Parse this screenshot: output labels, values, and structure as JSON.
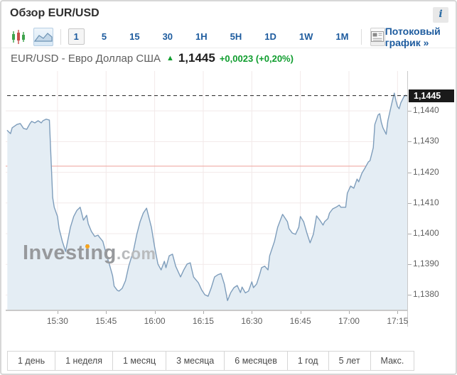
{
  "title": "Обзор EUR/USD",
  "info_button_label": "i",
  "toolbar": {
    "chart_types": [
      {
        "name": "candlestick-chart",
        "active": false
      },
      {
        "name": "area-chart",
        "active": true
      }
    ],
    "intervals": [
      "1",
      "5",
      "15",
      "30",
      "1H",
      "5H",
      "1D",
      "1W",
      "1M"
    ],
    "active_interval": "1",
    "streaming_link": "Потоковый график »"
  },
  "instrument": {
    "name": "EUR/USD - Евро Доллар США",
    "direction": "up",
    "price": "1,1445",
    "change": "+0,0023",
    "change_pct": "(+0,20%)"
  },
  "watermark": {
    "part1": "Invest",
    "part2": "i",
    "part3": "ng",
    "suffix": ".com"
  },
  "ranges": [
    "1 день",
    "1 неделя",
    "1 месяц",
    "3 месяца",
    "6 месяцев",
    "1 год",
    "5 лет",
    "Макс."
  ],
  "colors": {
    "line": "#7e9dbb",
    "fill": "#e4edf4",
    "grid": "#f2e9e9",
    "prev_close_line": "#efaaa4",
    "current_price_line": "#3a3a3a",
    "badge_bg": "#1a1a1a",
    "up_green": "#0f9d2e",
    "link_blue": "#1d5b9e"
  },
  "chart_data": {
    "type": "area",
    "title": "EUR/USD 1-minute intraday",
    "grid": true,
    "x_axis": {
      "start": "15:14",
      "end": "17:18",
      "ticks": [
        "15:30",
        "15:45",
        "16:00",
        "16:15",
        "16:30",
        "16:45",
        "17:00",
        "17:15"
      ]
    },
    "y_axis": {
      "min": 1.1375,
      "max": 1.1453,
      "ticks": [
        {
          "v": 1.144,
          "label": "1,1440"
        },
        {
          "v": 1.143,
          "label": "1,1430"
        },
        {
          "v": 1.142,
          "label": "1,1420"
        },
        {
          "v": 1.141,
          "label": "1,1410"
        },
        {
          "v": 1.14,
          "label": "1,1400"
        },
        {
          "v": 1.139,
          "label": "1,1390"
        },
        {
          "v": 1.138,
          "label": "1,1380"
        }
      ]
    },
    "last_price": 1.1445,
    "last_price_label": "1,1445",
    "prev_close": 1.1422,
    "series": [
      {
        "name": "EUR/USD",
        "points": [
          [
            0.5,
            1.14336
          ],
          [
            1.5,
            1.14326
          ],
          [
            2,
            1.14345
          ],
          [
            3.5,
            1.14356
          ],
          [
            4.5,
            1.14359
          ],
          [
            5.5,
            1.14343
          ],
          [
            6.5,
            1.1434
          ],
          [
            7.5,
            1.14359
          ],
          [
            8,
            1.14366
          ],
          [
            9,
            1.14361
          ],
          [
            10,
            1.14368
          ],
          [
            11,
            1.14361
          ],
          [
            11.5,
            1.14368
          ],
          [
            12.5,
            1.14373
          ],
          [
            13.5,
            1.1437
          ],
          [
            14.5,
            1.14118
          ],
          [
            15,
            1.14086
          ],
          [
            16,
            1.14056
          ],
          [
            16.5,
            1.14016
          ],
          [
            17.5,
            1.13975
          ],
          [
            18.5,
            1.13942
          ],
          [
            20,
            1.14021
          ],
          [
            21,
            1.14056
          ],
          [
            22,
            1.14076
          ],
          [
            23,
            1.14086
          ],
          [
            24,
            1.14044
          ],
          [
            25,
            1.1406
          ],
          [
            25.5,
            1.14032
          ],
          [
            26.5,
            1.14007
          ],
          [
            27.5,
            1.13991
          ],
          [
            28.5,
            1.13995
          ],
          [
            29,
            1.13988
          ],
          [
            30,
            1.13975
          ],
          [
            31,
            1.13935
          ],
          [
            32,
            1.13901
          ],
          [
            33,
            1.13863
          ],
          [
            33.5,
            1.13829
          ],
          [
            34.5,
            1.13815
          ],
          [
            35,
            1.13813
          ],
          [
            36,
            1.13822
          ],
          [
            37,
            1.13847
          ],
          [
            38,
            1.13894
          ],
          [
            39.5,
            1.13947
          ],
          [
            40.5,
            1.13998
          ],
          [
            41.5,
            1.14039
          ],
          [
            42.5,
            1.14067
          ],
          [
            43.5,
            1.14083
          ],
          [
            45,
            1.14021
          ],
          [
            46,
            1.13956
          ],
          [
            47,
            1.13901
          ],
          [
            48,
            1.13882
          ],
          [
            49,
            1.1391
          ],
          [
            49.5,
            1.13889
          ],
          [
            50.5,
            1.13928
          ],
          [
            51.5,
            1.13933
          ],
          [
            52.5,
            1.13894
          ],
          [
            54,
            1.13859
          ],
          [
            55,
            1.13882
          ],
          [
            56,
            1.13901
          ],
          [
            57,
            1.13905
          ],
          [
            58,
            1.13859
          ],
          [
            59.5,
            1.1384
          ],
          [
            60.5,
            1.13817
          ],
          [
            61.5,
            1.13801
          ],
          [
            62.5,
            1.13796
          ],
          [
            63.5,
            1.13824
          ],
          [
            64.5,
            1.13859
          ],
          [
            65.5,
            1.13866
          ],
          [
            66.5,
            1.1387
          ],
          [
            67.5,
            1.13836
          ],
          [
            68.5,
            1.13782
          ],
          [
            69.5,
            1.13808
          ],
          [
            70.5,
            1.13824
          ],
          [
            71.5,
            1.13831
          ],
          [
            72.5,
            1.13808
          ],
          [
            73,
            1.13826
          ],
          [
            74,
            1.13807
          ],
          [
            75,
            1.13813
          ],
          [
            76,
            1.13843
          ],
          [
            76.5,
            1.13824
          ],
          [
            77.5,
            1.13836
          ],
          [
            78.5,
            1.1387
          ],
          [
            79,
            1.13889
          ],
          [
            80,
            1.13894
          ],
          [
            81,
            1.13882
          ],
          [
            81.5,
            1.13928
          ],
          [
            83,
            1.13975
          ],
          [
            84,
            1.14021
          ],
          [
            85,
            1.14049
          ],
          [
            85.5,
            1.14063
          ],
          [
            87,
            1.14039
          ],
          [
            87.5,
            1.14016
          ],
          [
            88.5,
            1.14002
          ],
          [
            89.5,
            1.13998
          ],
          [
            90.5,
            1.14021
          ],
          [
            91,
            1.14056
          ],
          [
            92,
            1.14039
          ],
          [
            93,
            1.14002
          ],
          [
            94,
            1.1397
          ],
          [
            95,
            1.13998
          ],
          [
            96,
            1.14058
          ],
          [
            97,
            1.14044
          ],
          [
            98,
            1.14028
          ],
          [
            98.5,
            1.14039
          ],
          [
            99.5,
            1.14049
          ],
          [
            100,
            1.14067
          ],
          [
            101,
            1.14081
          ],
          [
            102,
            1.14086
          ],
          [
            103,
            1.14093
          ],
          [
            103.5,
            1.14086
          ],
          [
            105,
            1.14086
          ],
          [
            105.5,
            1.14132
          ],
          [
            106.5,
            1.14155
          ],
          [
            107.5,
            1.14148
          ],
          [
            108.5,
            1.14178
          ],
          [
            109,
            1.14169
          ],
          [
            110,
            1.14197
          ],
          [
            111,
            1.14215
          ],
          [
            112,
            1.14234
          ],
          [
            112.5,
            1.14238
          ],
          [
            113.5,
            1.1428
          ],
          [
            114,
            1.14356
          ],
          [
            115,
            1.14387
          ],
          [
            115.5,
            1.14391
          ],
          [
            116,
            1.14363
          ],
          [
            116.5,
            1.14345
          ],
          [
            117.5,
            1.14324
          ],
          [
            118,
            1.14368
          ],
          [
            119,
            1.14414
          ],
          [
            119.5,
            1.14437
          ],
          [
            120,
            1.14458
          ],
          [
            120.5,
            1.14433
          ],
          [
            121,
            1.14414
          ],
          [
            121.5,
            1.14407
          ],
          [
            122,
            1.14426
          ],
          [
            123,
            1.14447
          ],
          [
            123.5,
            1.14451
          ],
          [
            124,
            1.14449
          ]
        ]
      }
    ]
  }
}
